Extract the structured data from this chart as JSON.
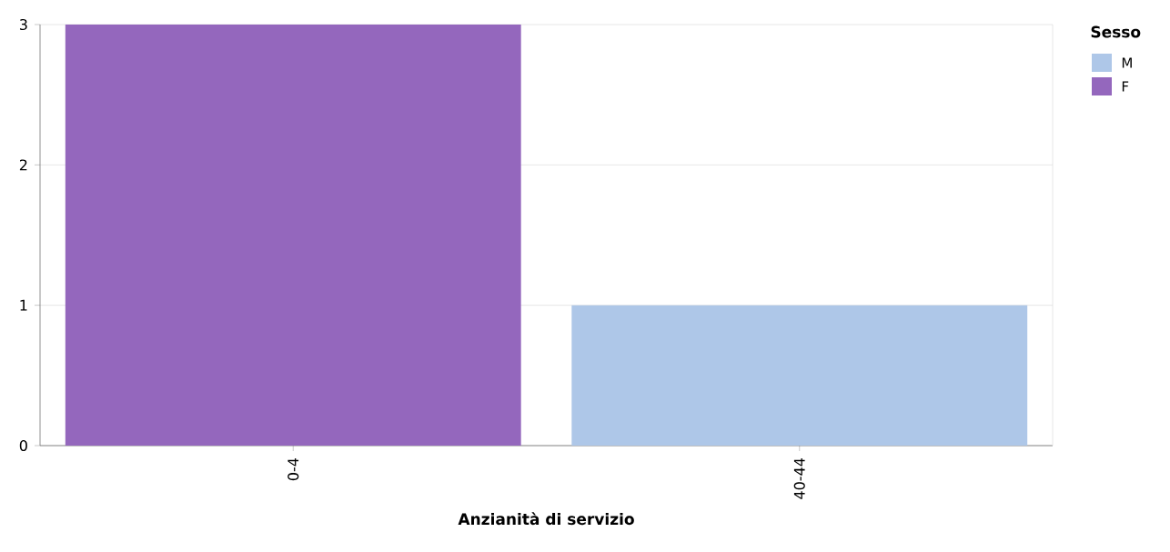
{
  "chart_data": {
    "type": "bar",
    "stacked": true,
    "xlabel": "Anzianità di servizio",
    "legend_title": "Sesso",
    "legend": "top right",
    "grid": "y",
    "categories": [
      "0-4",
      "40-44"
    ],
    "series": [
      {
        "name": "M",
        "color": "#aec7e8",
        "values": [
          null,
          1
        ]
      },
      {
        "name": "F",
        "color": "#9467bd",
        "values": [
          3,
          null
        ]
      }
    ],
    "ylim": [
      0,
      3
    ],
    "yticks": [
      0,
      1,
      2,
      3
    ]
  }
}
